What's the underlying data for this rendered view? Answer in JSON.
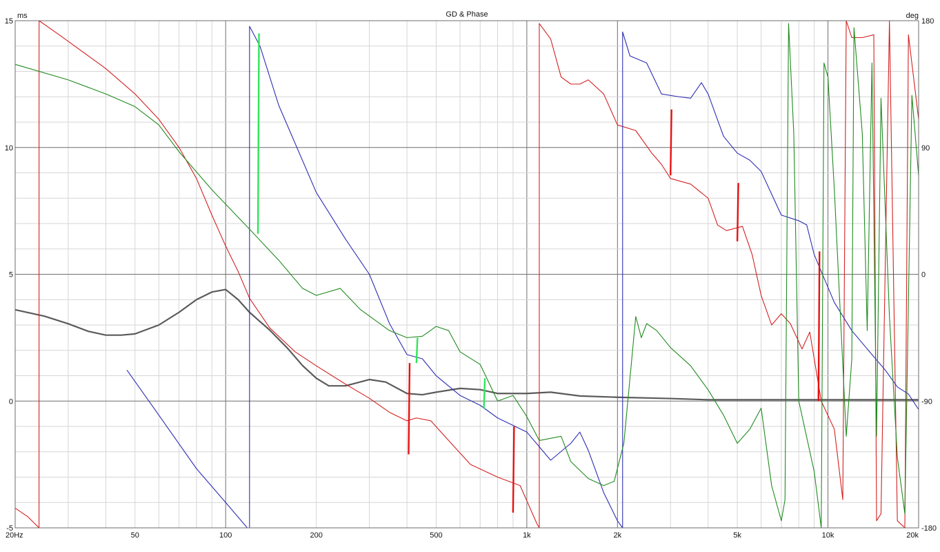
{
  "chart_data": {
    "type": "line",
    "title": "GD & Phase",
    "left_unit": "ms",
    "right_unit": "deg",
    "x_scale": "log",
    "xlim": [
      20,
      20000
    ],
    "ylim_left": [
      -5,
      15
    ],
    "ylim_right": [
      -180,
      180
    ],
    "grid": true,
    "x_major": [
      20,
      100,
      1000,
      2000,
      10000,
      20000
    ],
    "x_ticks": [
      {
        "value": 20,
        "label": "20Hz"
      },
      {
        "value": 50,
        "label": "50"
      },
      {
        "value": 100,
        "label": "100"
      },
      {
        "value": 200,
        "label": "200"
      },
      {
        "value": 500,
        "label": "500"
      },
      {
        "value": 1000,
        "label": "1k"
      },
      {
        "value": 2000,
        "label": "2k"
      },
      {
        "value": 5000,
        "label": "5k"
      },
      {
        "value": 10000,
        "label": "10k"
      },
      {
        "value": 20000,
        "label": "20k"
      }
    ],
    "y_left_ticks": [
      {
        "value": 15,
        "label": "15"
      },
      {
        "value": 10,
        "label": "10"
      },
      {
        "value": 5,
        "label": "5"
      },
      {
        "value": 0,
        "label": "0"
      },
      {
        "value": -5,
        "label": "-5"
      }
    ],
    "y_right_ticks": [
      {
        "value": 180,
        "label": "180"
      },
      {
        "value": 90,
        "label": "90"
      },
      {
        "value": 0,
        "label": "0"
      },
      {
        "value": -90,
        "label": "-90"
      },
      {
        "value": -180,
        "label": "-180"
      }
    ],
    "series": [
      {
        "color": "#5a5a5a",
        "width": 2.2,
        "axis": "left",
        "points": [
          [
            20,
            3.6
          ],
          [
            25,
            3.35
          ],
          [
            30,
            3.05
          ],
          [
            35,
            2.75
          ],
          [
            40,
            2.6
          ],
          [
            45,
            2.6
          ],
          [
            50,
            2.65
          ],
          [
            60,
            3.0
          ],
          [
            70,
            3.5
          ],
          [
            80,
            4.0
          ],
          [
            90,
            4.3
          ],
          [
            100,
            4.4
          ],
          [
            110,
            4.0
          ],
          [
            120,
            3.5
          ],
          [
            140,
            2.8
          ],
          [
            160,
            2.1
          ],
          [
            180,
            1.4
          ],
          [
            200,
            0.9
          ],
          [
            220,
            0.6
          ],
          [
            250,
            0.6
          ],
          [
            300,
            0.85
          ],
          [
            340,
            0.75
          ],
          [
            400,
            0.3
          ],
          [
            450,
            0.25
          ],
          [
            500,
            0.35
          ],
          [
            600,
            0.5
          ],
          [
            700,
            0.45
          ],
          [
            800,
            0.3
          ],
          [
            1000,
            0.3
          ],
          [
            1200,
            0.35
          ],
          [
            1500,
            0.2
          ],
          [
            2000,
            0.15
          ],
          [
            3000,
            0.1
          ],
          [
            4000,
            0.05
          ],
          [
            6000,
            0.05
          ],
          [
            10000,
            0.05
          ],
          [
            15000,
            0.05
          ],
          [
            20000,
            0.05
          ]
        ]
      },
      {
        "color": "#d32020",
        "width": 1.1,
        "axis": "right",
        "points": [
          [
            20,
            -166
          ],
          [
            22,
            -172
          ],
          [
            24,
            -180
          ],
          [
            24.01,
            180
          ],
          [
            28,
            170
          ],
          [
            35,
            155
          ],
          [
            40,
            146
          ],
          [
            50,
            128
          ],
          [
            60,
            110
          ],
          [
            70,
            90
          ],
          [
            80,
            68
          ],
          [
            90,
            42
          ],
          [
            100,
            20
          ],
          [
            110,
            2
          ],
          [
            120,
            -17
          ],
          [
            140,
            -38
          ],
          [
            170,
            -55
          ],
          [
            200,
            -65
          ],
          [
            250,
            -78
          ],
          [
            300,
            -88
          ],
          [
            350,
            -98
          ],
          [
            400,
            -104
          ],
          [
            430,
            -102
          ],
          [
            480,
            -104
          ],
          [
            550,
            -118
          ],
          [
            650,
            -135
          ],
          [
            800,
            -144
          ],
          [
            950,
            -150
          ],
          [
            1080,
            -177
          ],
          [
            1100,
            -180
          ],
          [
            1100.01,
            178
          ],
          [
            1200,
            167
          ],
          [
            1300,
            140
          ],
          [
            1400,
            135
          ],
          [
            1500,
            135
          ],
          [
            1600,
            138
          ],
          [
            1800,
            128
          ],
          [
            2000,
            106
          ],
          [
            2300,
            102
          ],
          [
            2600,
            86
          ],
          [
            2800,
            78
          ],
          [
            3000,
            68
          ],
          [
            3500,
            64
          ],
          [
            4000,
            54
          ],
          [
            4300,
            35
          ],
          [
            4600,
            31
          ],
          [
            5200,
            34
          ],
          [
            5600,
            14
          ],
          [
            6000,
            -15
          ],
          [
            6500,
            -36
          ],
          [
            7000,
            -28
          ],
          [
            7500,
            -35
          ],
          [
            8200,
            -53
          ],
          [
            8700,
            -41
          ],
          [
            9500,
            -90
          ],
          [
            10500,
            -110
          ],
          [
            11200,
            -160
          ],
          [
            11500,
            180
          ],
          [
            12000,
            168
          ],
          [
            13000,
            168
          ],
          [
            14200,
            170
          ],
          [
            14500,
            -175
          ],
          [
            15000,
            -170
          ],
          [
            16000,
            180
          ],
          [
            17000,
            -175
          ],
          [
            18000,
            -180
          ],
          [
            18500,
            170
          ],
          [
            20000,
            110
          ]
        ]
      },
      {
        "color": "#2c2cb4",
        "width": 1.1,
        "axis": "right",
        "points": [
          [
            47,
            -68
          ],
          [
            60,
            -100
          ],
          [
            80,
            -138
          ],
          [
            100,
            -162
          ],
          [
            118,
            -180
          ],
          [
            120,
            -180
          ],
          [
            120.01,
            176
          ],
          [
            130,
            162
          ],
          [
            150,
            120
          ],
          [
            200,
            58
          ],
          [
            250,
            25
          ],
          [
            300,
            0
          ],
          [
            350,
            -35
          ],
          [
            400,
            -57
          ],
          [
            450,
            -60
          ],
          [
            500,
            -72
          ],
          [
            600,
            -86
          ],
          [
            700,
            -93
          ],
          [
            800,
            -102
          ],
          [
            1000,
            -112
          ],
          [
            1200,
            -132
          ],
          [
            1400,
            -120
          ],
          [
            1500,
            -112
          ],
          [
            1600,
            -125
          ],
          [
            1800,
            -155
          ],
          [
            2000,
            -175
          ],
          [
            2080,
            -180
          ],
          [
            2080.01,
            172
          ],
          [
            2200,
            155
          ],
          [
            2500,
            150
          ],
          [
            2800,
            128
          ],
          [
            3200,
            126
          ],
          [
            3500,
            125
          ],
          [
            3800,
            136
          ],
          [
            4000,
            128
          ],
          [
            4500,
            98
          ],
          [
            5000,
            86
          ],
          [
            5500,
            81
          ],
          [
            6000,
            73
          ],
          [
            7000,
            42
          ],
          [
            8000,
            38
          ],
          [
            8500,
            35
          ],
          [
            9000,
            14
          ],
          [
            9500,
            2
          ],
          [
            10500,
            -20
          ],
          [
            12000,
            -40
          ],
          [
            14000,
            -57
          ],
          [
            15500,
            -68
          ],
          [
            17000,
            -80
          ],
          [
            18500,
            -85
          ],
          [
            20000,
            -96
          ]
        ]
      },
      {
        "color": "#1f8a1f",
        "width": 1.1,
        "axis": "right",
        "points": [
          [
            20,
            149
          ],
          [
            30,
            138
          ],
          [
            40,
            128
          ],
          [
            50,
            119
          ],
          [
            60,
            106
          ],
          [
            70,
            87
          ],
          [
            90,
            60
          ],
          [
            120,
            32
          ],
          [
            150,
            10
          ],
          [
            180,
            -10
          ],
          [
            200,
            -15
          ],
          [
            240,
            -10
          ],
          [
            280,
            -25
          ],
          [
            350,
            -40
          ],
          [
            400,
            -45
          ],
          [
            450,
            -44
          ],
          [
            500,
            -37
          ],
          [
            550,
            -40
          ],
          [
            600,
            -55
          ],
          [
            700,
            -64
          ],
          [
            800,
            -90
          ],
          [
            900,
            -86
          ],
          [
            1000,
            -101
          ],
          [
            1100,
            -118
          ],
          [
            1300,
            -115
          ],
          [
            1400,
            -133
          ],
          [
            1600,
            -145
          ],
          [
            1800,
            -150
          ],
          [
            1950,
            -147
          ],
          [
            2100,
            -120
          ],
          [
            2300,
            -30
          ],
          [
            2400,
            -45
          ],
          [
            2500,
            -35
          ],
          [
            2700,
            -40
          ],
          [
            3000,
            -52
          ],
          [
            3500,
            -65
          ],
          [
            4000,
            -82
          ],
          [
            4500,
            -100
          ],
          [
            5000,
            -120
          ],
          [
            5500,
            -110
          ],
          [
            6000,
            -95
          ],
          [
            6500,
            -150
          ],
          [
            7000,
            -175
          ],
          [
            7200,
            -160
          ],
          [
            7400,
            178
          ],
          [
            7700,
            100
          ],
          [
            8000,
            -90
          ],
          [
            9000,
            -140
          ],
          [
            9500,
            -180
          ],
          [
            9700,
            150
          ],
          [
            10000,
            140
          ],
          [
            10500,
            60
          ],
          [
            11500,
            -115
          ],
          [
            12000,
            -60
          ],
          [
            12200,
            175
          ],
          [
            13000,
            100
          ],
          [
            13500,
            -40
          ],
          [
            14000,
            150
          ],
          [
            14500,
            -115
          ],
          [
            15000,
            125
          ],
          [
            16000,
            -30
          ],
          [
            17000,
            -130
          ],
          [
            18000,
            -170
          ],
          [
            19000,
            127
          ],
          [
            20000,
            70
          ]
        ]
      }
    ],
    "markers": [
      {
        "color": "#2ee65a",
        "freq": 128,
        "from_ms": 6.6,
        "to_ms": 14.5
      },
      {
        "color": "#2ee65a",
        "freq": 430,
        "from_ms": 1.5,
        "to_ms": 2.5
      },
      {
        "color": "#2ee65a",
        "freq": 720,
        "from_ms": -0.3,
        "to_ms": 0.9
      },
      {
        "color": "#e81010",
        "freq": 405,
        "from_ms": -2.1,
        "to_ms": 1.5
      },
      {
        "color": "#e81010",
        "freq": 900,
        "from_ms": -4.4,
        "to_ms": -1.0
      },
      {
        "color": "#e81010",
        "freq": 3000,
        "from_ms": 8.9,
        "to_ms": 11.5
      },
      {
        "color": "#e81010",
        "freq": 5000,
        "from_ms": 6.3,
        "to_ms": 8.6
      },
      {
        "color": "#e81010",
        "freq": 9300,
        "from_ms": 0.0,
        "to_ms": 5.9
      }
    ]
  }
}
